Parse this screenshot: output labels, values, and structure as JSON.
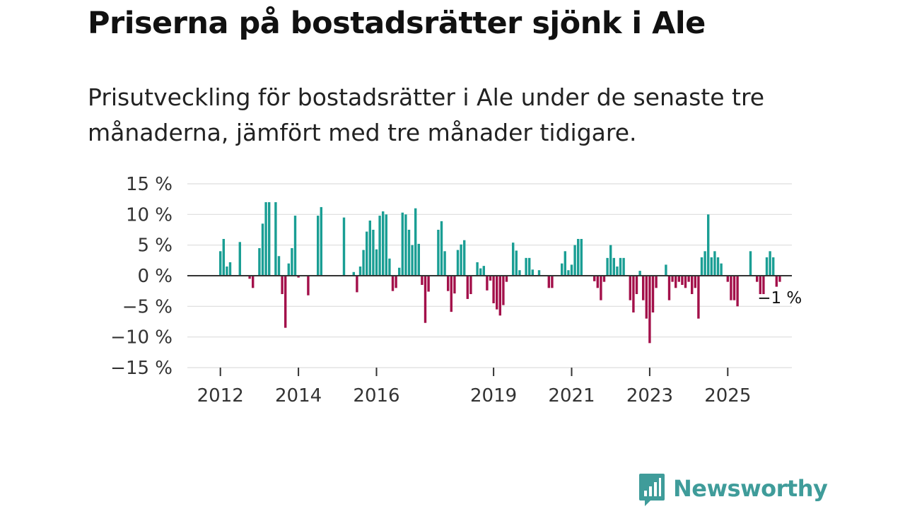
{
  "header": {
    "title": "Priserna på bostadsrätter sjönk i Ale",
    "subtitle": "Prisutveckling för bostadsrätter i Ale under de senaste tre månaderna, jämfört med tre månader tidigare."
  },
  "brand": {
    "name": "Newsworthy",
    "color": "#3f9c9a"
  },
  "colors": {
    "positive": "#1a9e94",
    "negative": "#a3104a",
    "grid": "#dddddd",
    "zero": "#333333"
  },
  "chart_data": {
    "type": "bar",
    "title": "Priserna på bostadsrätter sjönk i Ale",
    "xlabel": "",
    "ylabel": "",
    "ylim": [
      -15,
      15
    ],
    "y_ticks": [
      15,
      10,
      5,
      0,
      -5,
      -10,
      -15
    ],
    "y_tick_labels": [
      "15 %",
      "10 %",
      "5 %",
      "0 %",
      "−5 %",
      "−10 %",
      "−15 %"
    ],
    "x_ticks": [
      "2012",
      "2014",
      "2016",
      "2019",
      "2021",
      "2023",
      "2025"
    ],
    "x_tick_positions": [
      0,
      24,
      48,
      84,
      108,
      132,
      156
    ],
    "start": "2012-01",
    "frequency": "monthly",
    "grid": true,
    "last_value_label": "−1 %",
    "values": [
      4,
      6,
      1.5,
      2.2,
      0,
      0,
      5.5,
      0,
      0,
      -0.5,
      -2,
      0,
      4.5,
      8.5,
      12,
      12,
      0,
      12,
      3.2,
      -3,
      -8.5,
      2,
      4.5,
      9.8,
      -0.3,
      0,
      0,
      -3.2,
      0,
      0,
      9.8,
      11.2,
      0,
      0,
      0,
      0,
      0,
      0,
      9.5,
      0,
      0,
      0.6,
      -2.7,
      1.5,
      4.2,
      7.2,
      9,
      7.5,
      4.3,
      9.8,
      10.5,
      10,
      2.8,
      -2.5,
      -2,
      1.3,
      10.3,
      10,
      7.5,
      5,
      11,
      5.2,
      -1.5,
      -7.7,
      -2.6,
      0,
      0,
      7.5,
      8.9,
      4,
      -2.5,
      -5.9,
      -2.9,
      4.2,
      5.1,
      5.8,
      -3.8,
      -3,
      0,
      2.2,
      1.2,
      1.6,
      -2.4,
      -0.8,
      -4.5,
      -5.5,
      -6.5,
      -4.8,
      -1,
      0,
      5.4,
      4.1,
      0.9,
      0,
      2.9,
      2.9,
      1,
      0,
      0.9,
      0,
      0,
      -2,
      -2,
      0,
      0,
      2,
      4,
      0.9,
      1.8,
      5,
      6,
      6,
      0,
      0,
      0,
      -0.9,
      -2,
      -4,
      -1,
      2.9,
      5,
      2.9,
      1.5,
      2.9,
      2.9,
      0,
      -4,
      -6,
      -3,
      0.8,
      -4,
      -7,
      -11,
      -6,
      -2,
      0,
      0,
      1.8,
      -4,
      -1,
      -2,
      -1,
      -1.5,
      -2,
      -1,
      -3,
      -2,
      -7,
      3,
      4,
      10,
      3,
      4,
      3,
      2,
      0,
      -1,
      -4,
      -4,
      -5,
      0,
      0,
      0,
      4,
      0,
      -1,
      -3,
      -3,
      3,
      4,
      3,
      -1.8,
      -1
    ]
  }
}
